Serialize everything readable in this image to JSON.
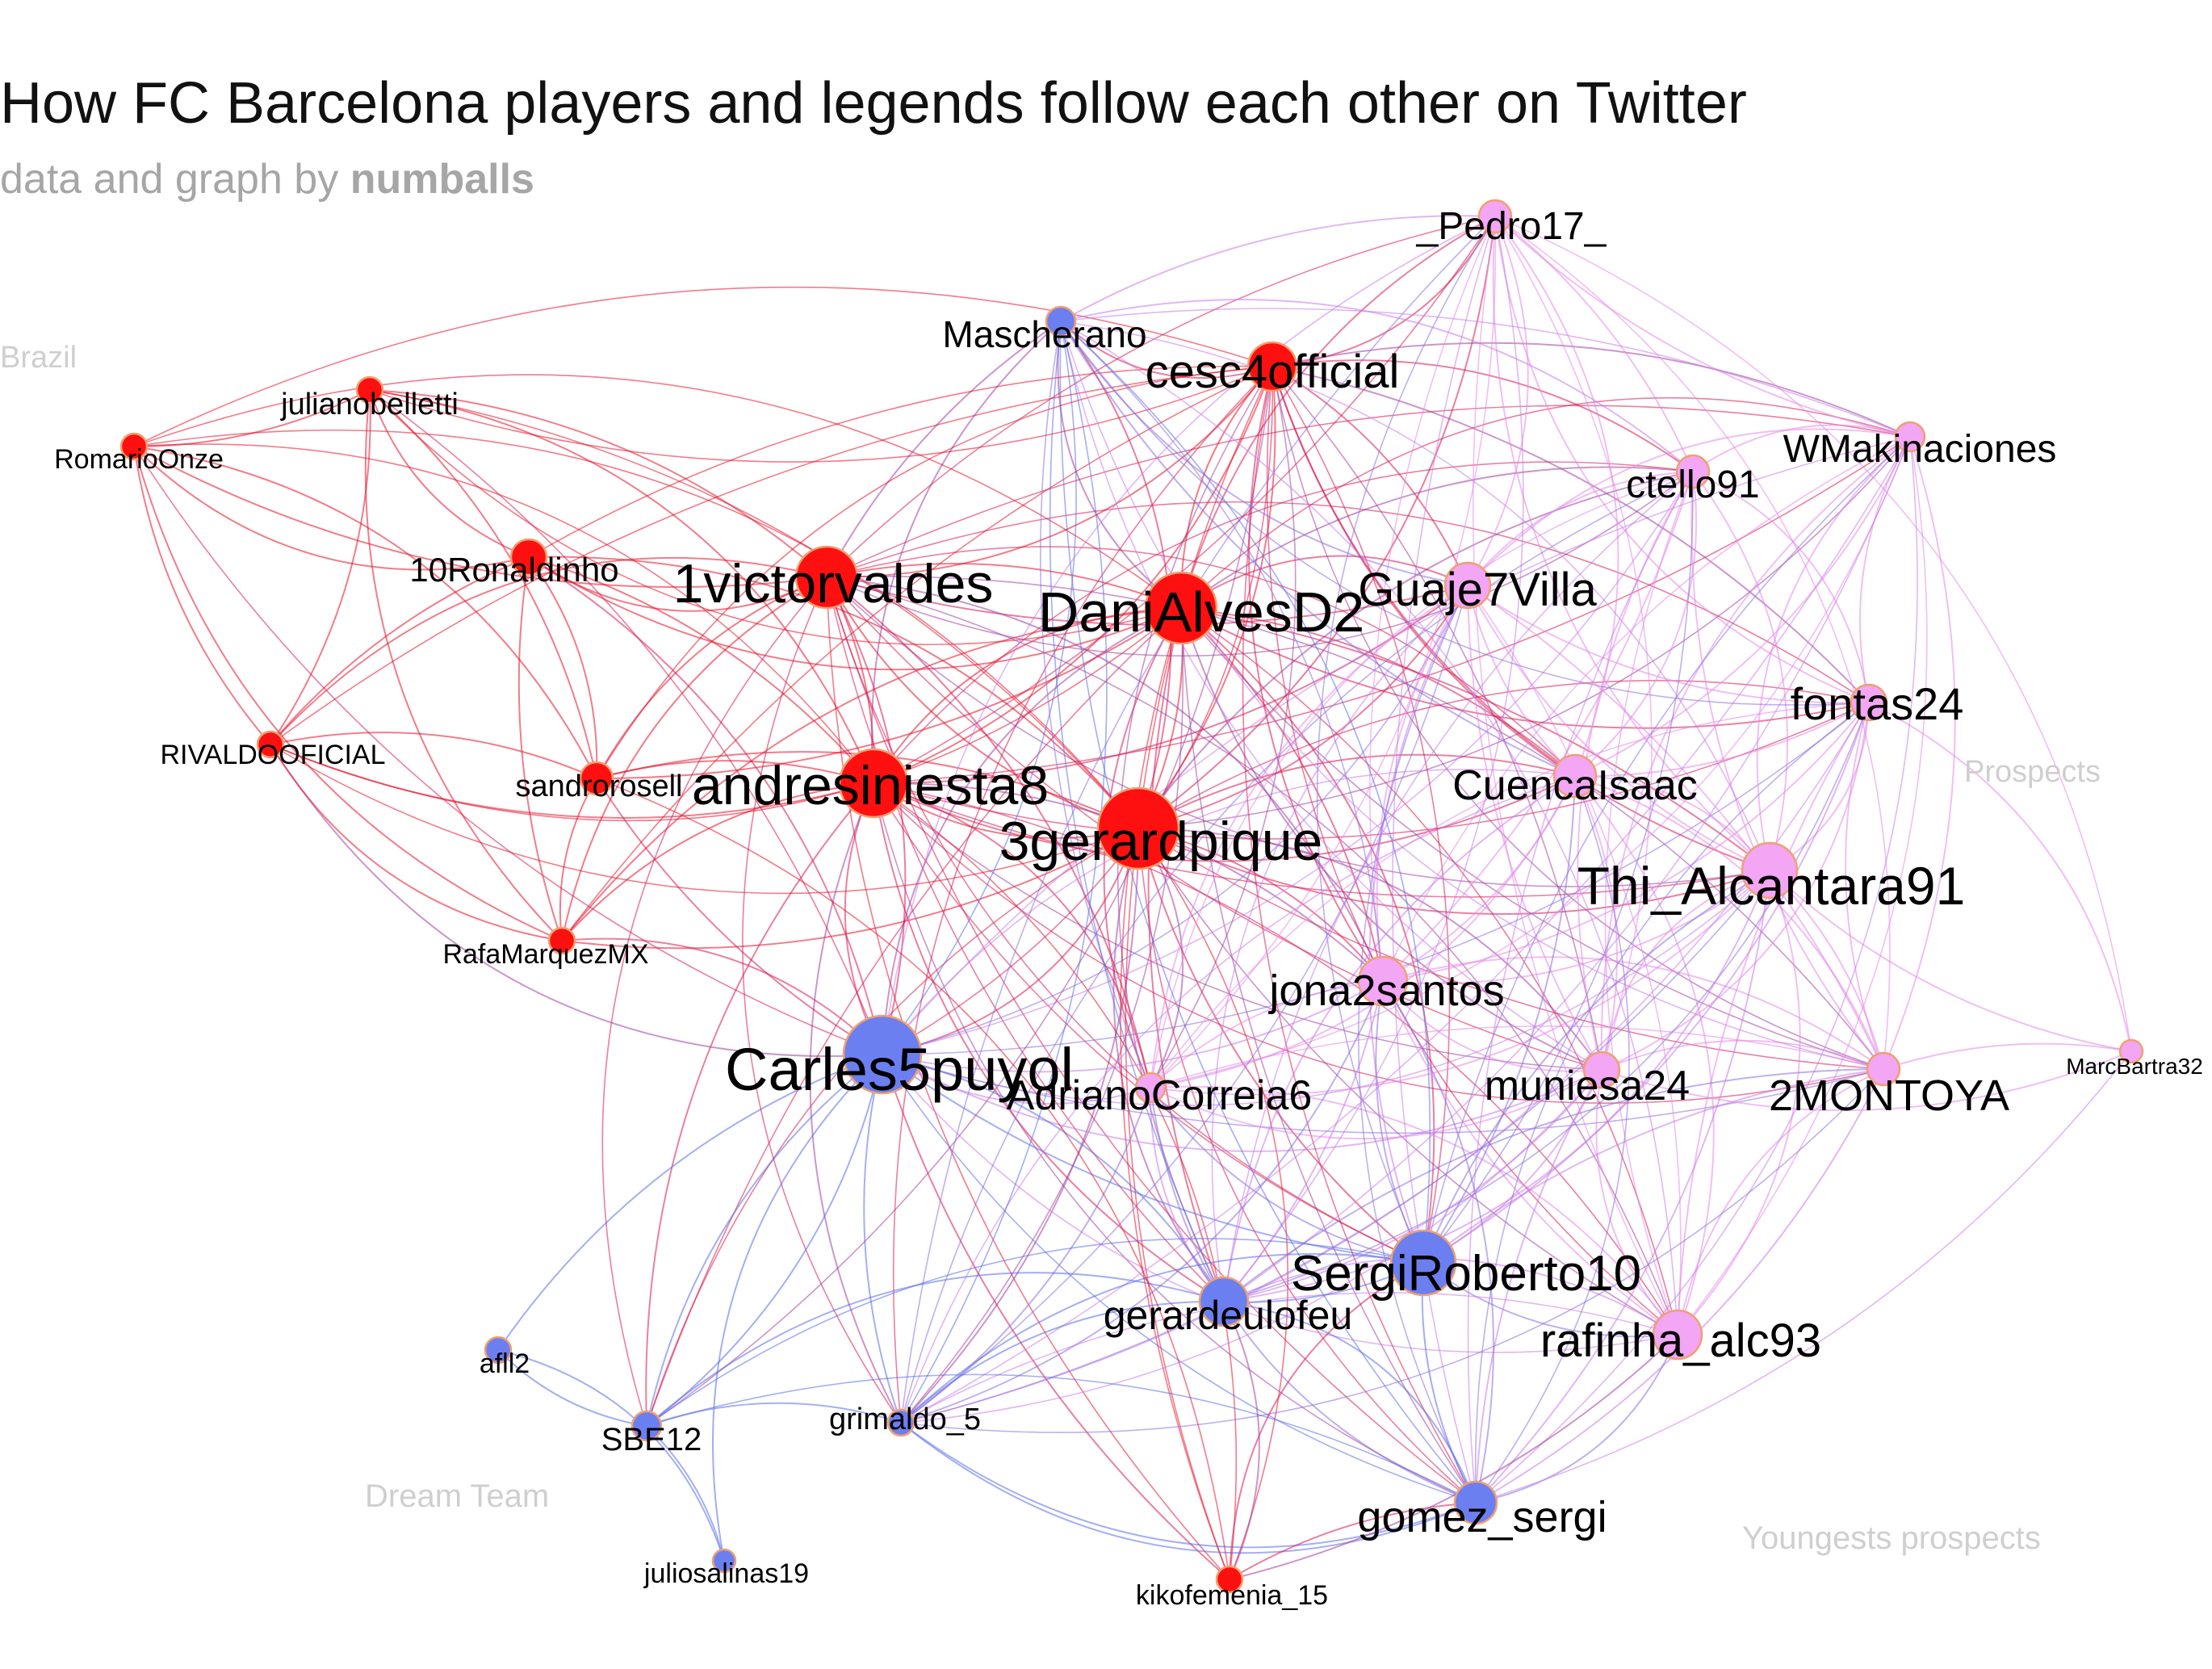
{
  "title": "How FC Barcelona players and legends follow each other on Twitter",
  "subtitle": {
    "prefix": "data and graph by",
    "author": "numballs"
  },
  "colors": {
    "brazil": "#ff1010",
    "dream_team": "#6c7ff0",
    "prospects": "#f2a6f4",
    "node_stroke": "#f0a070"
  },
  "group_labels": [
    {
      "id": "brazil",
      "text": "Brazil"
    },
    {
      "id": "prospects",
      "text": "Prospects"
    },
    {
      "id": "dream_team",
      "text": "Dream Team"
    },
    {
      "id": "youngests",
      "text": "Youngests prospects"
    }
  ],
  "nodes": [
    {
      "id": "pedro",
      "label": "_Pedro17_",
      "group": "prospects"
    },
    {
      "id": "mascherano",
      "label": "Mascherano",
      "group": "dream_team"
    },
    {
      "id": "cesc",
      "label": "cesc4official",
      "group": "brazil"
    },
    {
      "id": "belletti",
      "label": "julianobelletti",
      "group": "brazil"
    },
    {
      "id": "romario",
      "label": "RomarioOnze",
      "group": "brazil"
    },
    {
      "id": "wmak",
      "label": "WMakinaciones",
      "group": "prospects"
    },
    {
      "id": "tello",
      "label": "ctello91",
      "group": "prospects"
    },
    {
      "id": "ronaldinho",
      "label": "10Ronaldinho",
      "group": "brazil"
    },
    {
      "id": "valdes",
      "label": "1victorvaldes",
      "group": "brazil"
    },
    {
      "id": "alves",
      "label": "DaniAlvesD2",
      "group": "brazil"
    },
    {
      "id": "villa",
      "label": "Guaje7Villa",
      "group": "prospects"
    },
    {
      "id": "fontas",
      "label": "fontas24",
      "group": "prospects"
    },
    {
      "id": "rivaldo",
      "label": "RIVALDOOFICIAL",
      "group": "brazil"
    },
    {
      "id": "rosell",
      "label": "sandrorosell",
      "group": "brazil"
    },
    {
      "id": "iniesta",
      "label": "andresiniesta8",
      "group": "brazil"
    },
    {
      "id": "cuenca",
      "label": "CuencaIsaac",
      "group": "prospects"
    },
    {
      "id": "pique",
      "label": "3gerardpique",
      "group": "brazil"
    },
    {
      "id": "thiago",
      "label": "Thi_Alcantara91",
      "group": "prospects"
    },
    {
      "id": "marquez",
      "label": "RafaMarquezMX",
      "group": "brazil"
    },
    {
      "id": "jona",
      "label": "jona2santos",
      "group": "prospects"
    },
    {
      "id": "puyol",
      "label": "Carles5puyol",
      "group": "dream_team"
    },
    {
      "id": "adriano",
      "label": "AdrianoCorreia6",
      "group": "prospects"
    },
    {
      "id": "muniesa",
      "label": "muniesa24",
      "group": "prospects"
    },
    {
      "id": "montoya",
      "label": "2MONTOYA",
      "group": "prospects"
    },
    {
      "id": "bartra",
      "label": "MarcBartra32",
      "group": "prospects"
    },
    {
      "id": "roberto",
      "label": "SergiRoberto10",
      "group": "dream_team"
    },
    {
      "id": "deulofeu",
      "label": "gerardeulofeu",
      "group": "dream_team"
    },
    {
      "id": "rafinha",
      "label": "rafinha_alc93",
      "group": "prospects"
    },
    {
      "id": "afll",
      "label": "afll2",
      "group": "dream_team"
    },
    {
      "id": "sbe",
      "label": "SBE12",
      "group": "dream_team"
    },
    {
      "id": "grimaldo",
      "label": "grimaldo_5",
      "group": "dream_team"
    },
    {
      "id": "gomez",
      "label": "gomez_sergi",
      "group": "dream_team"
    },
    {
      "id": "salinas",
      "label": "juliosalinas19",
      "group": "dream_team"
    },
    {
      "id": "femenia",
      "label": "kikofemenia_15",
      "group": "brazil"
    }
  ]
}
